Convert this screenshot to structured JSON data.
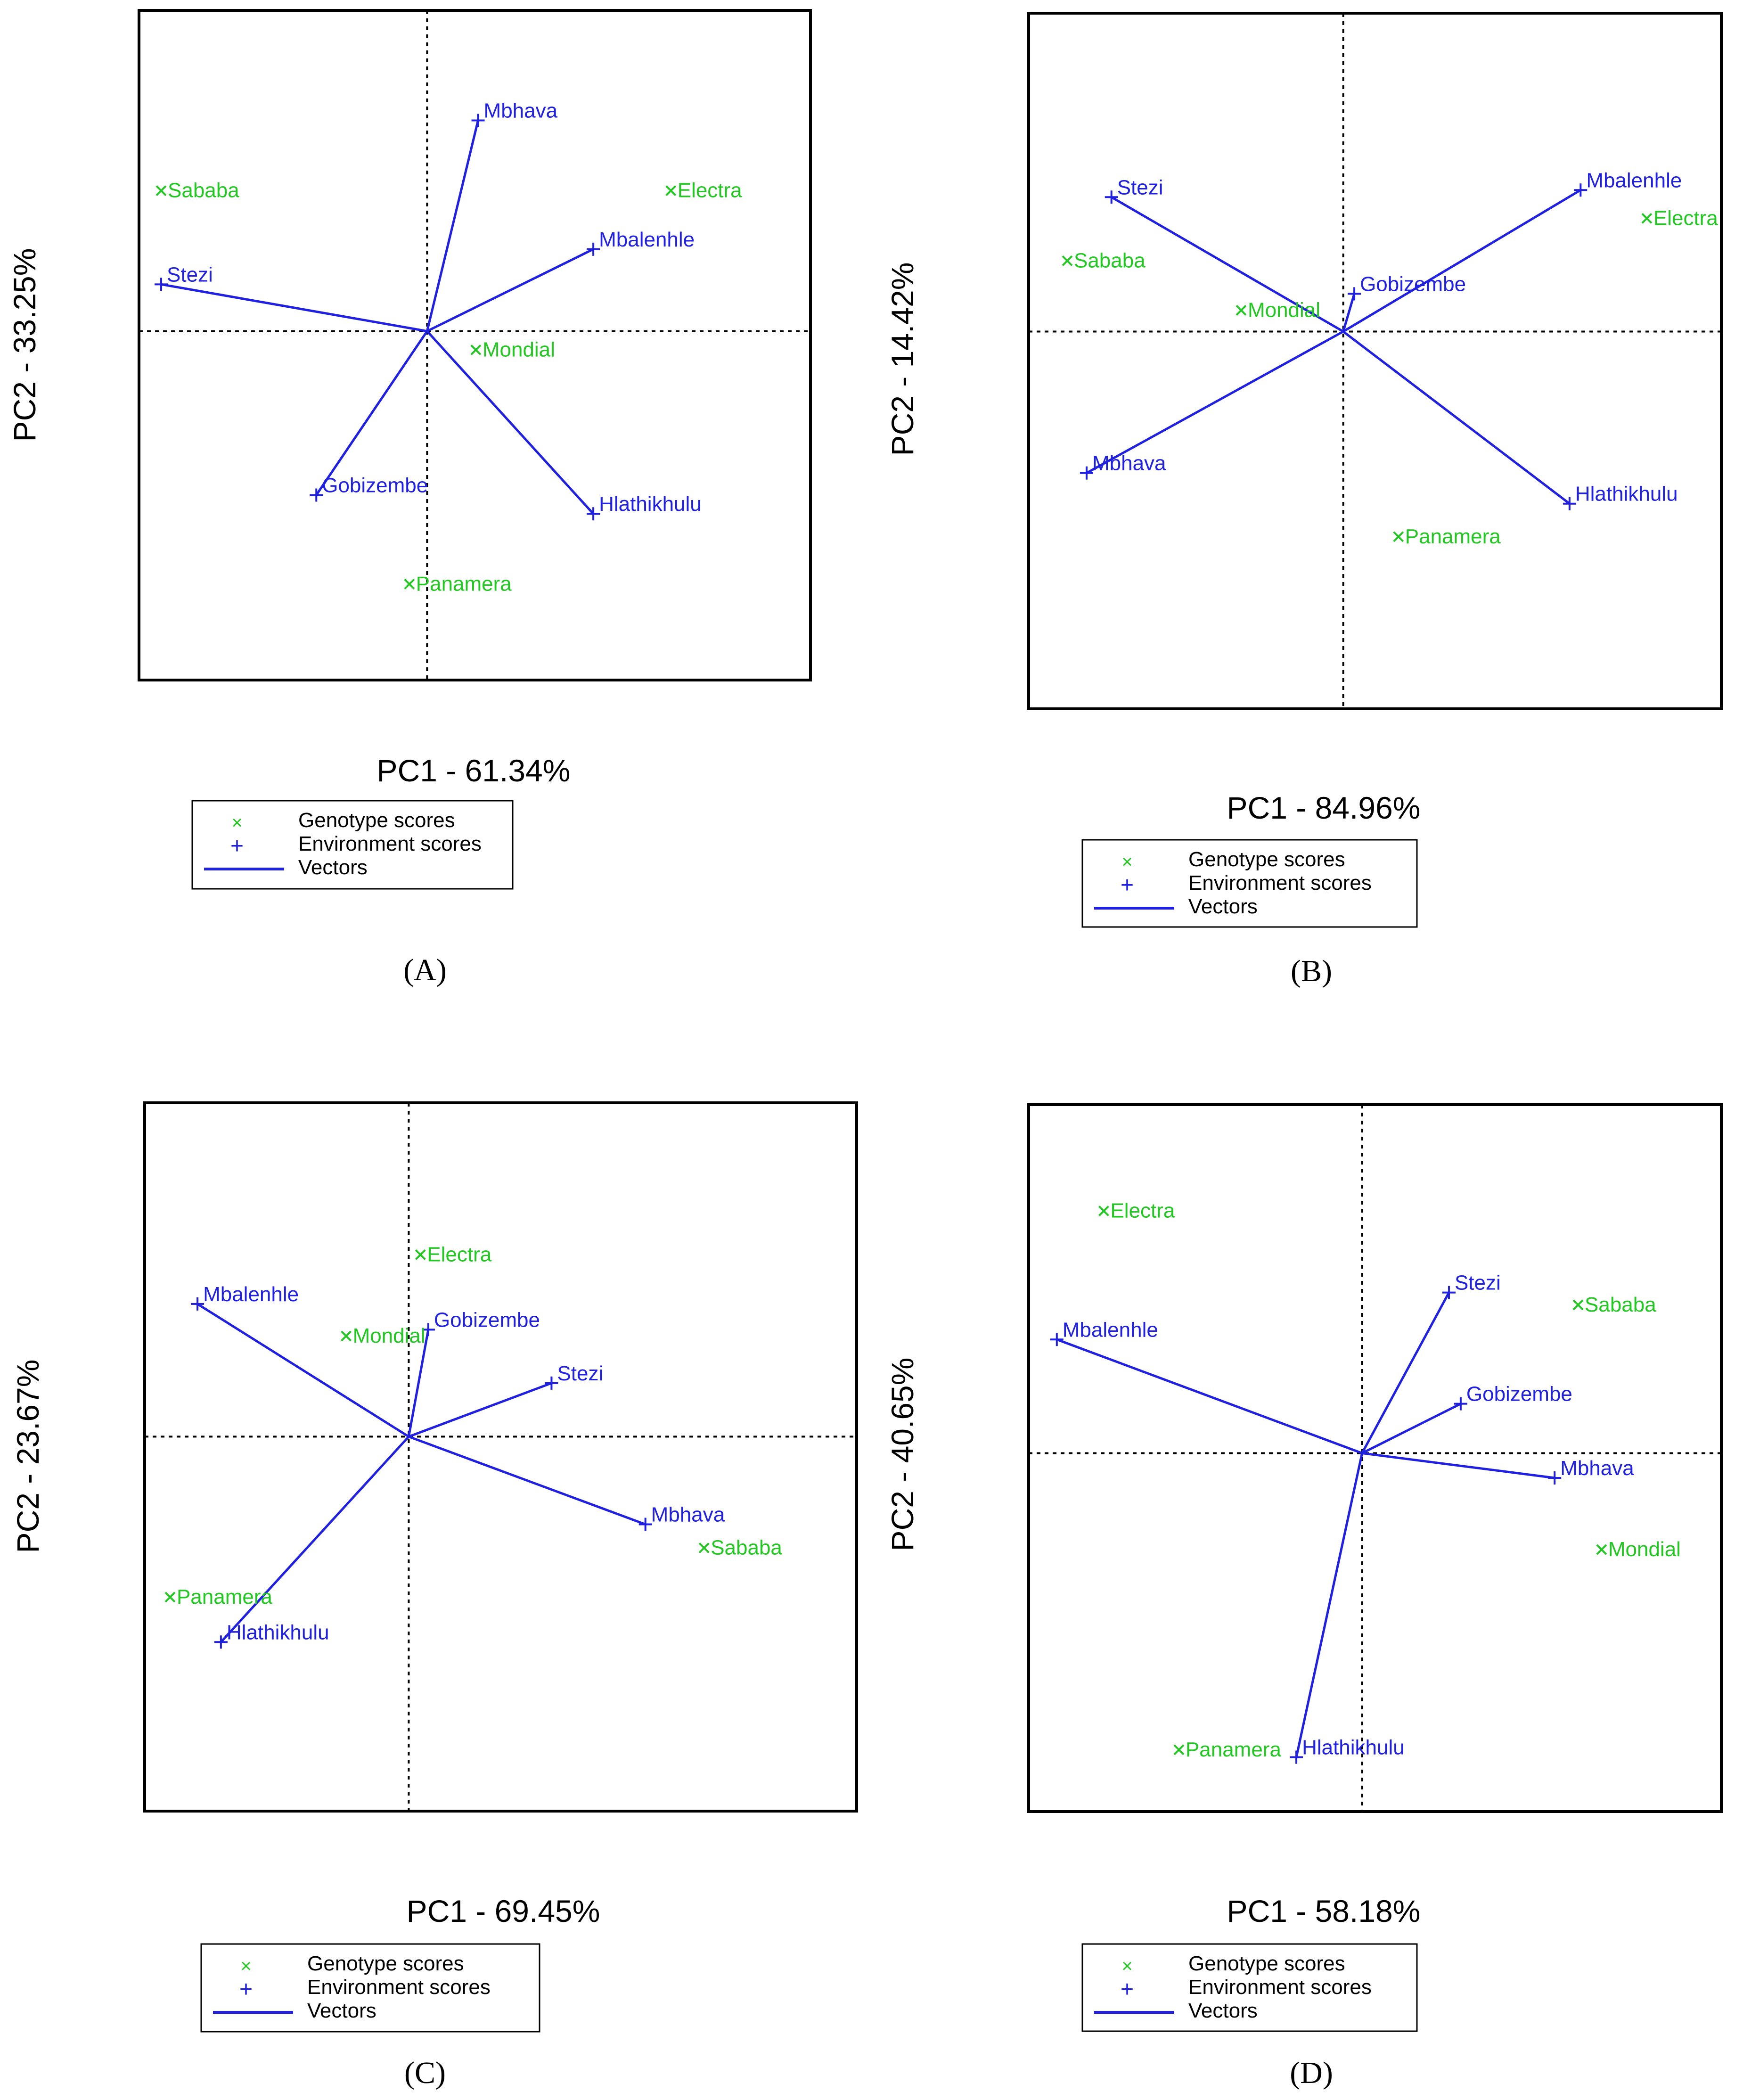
{
  "legend": {
    "genotype_label": "Genotype scores",
    "environment_label": "Environment scores",
    "vectors_label": "Vectors",
    "genotype_symbol": "×",
    "environment_symbol": "+"
  },
  "colors": {
    "genotype": "#22c722",
    "environment": "#2020e0",
    "axis": "#000000"
  },
  "chart_data": [
    {
      "type": "scatter",
      "panel": "(A)",
      "xlabel": "PC1 - 61.34%",
      "ylabel": "PC2 - 33.25%",
      "xlim": [
        -1.3,
        1.73
      ],
      "ylim": [
        -1.49,
        1.37
      ],
      "grid": false,
      "legend_position": "bottom",
      "genotypes": [
        {
          "name": "Sababa",
          "x": -1.2,
          "y": 0.6
        },
        {
          "name": "Electra",
          "x": 1.1,
          "y": 0.6
        },
        {
          "name": "Mondial",
          "x": 0.22,
          "y": -0.08
        },
        {
          "name": "Panamera",
          "x": -0.08,
          "y": -1.08
        }
      ],
      "environments": [
        {
          "name": "Mbhava",
          "x": 0.23,
          "y": 0.9
        },
        {
          "name": "Mbalenhle",
          "x": 0.75,
          "y": 0.35
        },
        {
          "name": "Stezi",
          "x": -1.2,
          "y": 0.2
        },
        {
          "name": "Gobizembe",
          "x": -0.5,
          "y": -0.7
        },
        {
          "name": "Hlathikhulu",
          "x": 0.75,
          "y": -0.78
        }
      ]
    },
    {
      "type": "scatter",
      "panel": "(B)",
      "xlabel": "PC1 - 84.96%",
      "ylabel": "PC2 - 14.42%",
      "xlim": [
        -1.14,
        1.37
      ],
      "ylim": [
        -1.6,
        1.35
      ],
      "grid": false,
      "legend_position": "bottom",
      "genotypes": [
        {
          "name": "Sababa",
          "x": -1.0,
          "y": 0.3
        },
        {
          "name": "Mondial",
          "x": -0.37,
          "y": 0.09
        },
        {
          "name": "Electra",
          "x": 1.1,
          "y": 0.48
        },
        {
          "name": "Panamera",
          "x": 0.2,
          "y": -0.87
        }
      ],
      "environments": [
        {
          "name": "Stezi",
          "x": -0.84,
          "y": 0.57
        },
        {
          "name": "Mbalenhle",
          "x": 0.86,
          "y": 0.6
        },
        {
          "name": "Gobizembe",
          "x": 0.04,
          "y": 0.16
        },
        {
          "name": "Mbhava",
          "x": -0.93,
          "y": -0.6
        },
        {
          "name": "Hlathikhulu",
          "x": 0.82,
          "y": -0.73
        }
      ]
    },
    {
      "type": "scatter",
      "panel": "(C)",
      "xlabel": "PC1 - 69.45%",
      "ylabel": "PC2 - 23.67%",
      "xlim": [
        -1.35,
        2.29
      ],
      "ylim": [
        -1.75,
        1.56
      ],
      "grid": false,
      "legend_position": "bottom",
      "genotypes": [
        {
          "name": "Electra",
          "x": 0.06,
          "y": 0.85
        },
        {
          "name": "Mondial",
          "x": -0.32,
          "y": 0.47
        },
        {
          "name": "Sababa",
          "x": 1.51,
          "y": -0.52
        },
        {
          "name": "Panamera",
          "x": -1.22,
          "y": -0.75
        }
      ],
      "environments": [
        {
          "name": "Mbalenhle",
          "x": -1.08,
          "y": 0.62
        },
        {
          "name": "Gobizembe",
          "x": 0.1,
          "y": 0.5
        },
        {
          "name": "Stezi",
          "x": 0.73,
          "y": 0.25
        },
        {
          "name": "Mbhava",
          "x": 1.21,
          "y": -0.41
        },
        {
          "name": "Hlathikhulu",
          "x": -0.96,
          "y": -0.96
        }
      ]
    },
    {
      "type": "scatter",
      "panel": "(D)",
      "xlabel": "PC1 - 58.18%",
      "ylabel": "PC2 - 40.65%",
      "xlim": [
        -1.42,
        1.53
      ],
      "ylim": [
        -1.45,
        1.41
      ],
      "grid": false,
      "legend_position": "bottom",
      "genotypes": [
        {
          "name": "Electra",
          "x": -1.1,
          "y": 0.98
        },
        {
          "name": "Sababa",
          "x": 0.92,
          "y": 0.6
        },
        {
          "name": "Mondial",
          "x": 1.02,
          "y": -0.39
        },
        {
          "name": "Panamera",
          "x": -0.78,
          "y": -1.2
        }
      ],
      "environments": [
        {
          "name": "Stezi",
          "x": 0.37,
          "y": 0.65
        },
        {
          "name": "Mbalenhle",
          "x": -1.3,
          "y": 0.46
        },
        {
          "name": "Gobizembe",
          "x": 0.42,
          "y": 0.2
        },
        {
          "name": "Mbhava",
          "x": 0.82,
          "y": -0.1
        },
        {
          "name": "Hlathikhulu",
          "x": -0.28,
          "y": -1.23
        }
      ]
    }
  ]
}
